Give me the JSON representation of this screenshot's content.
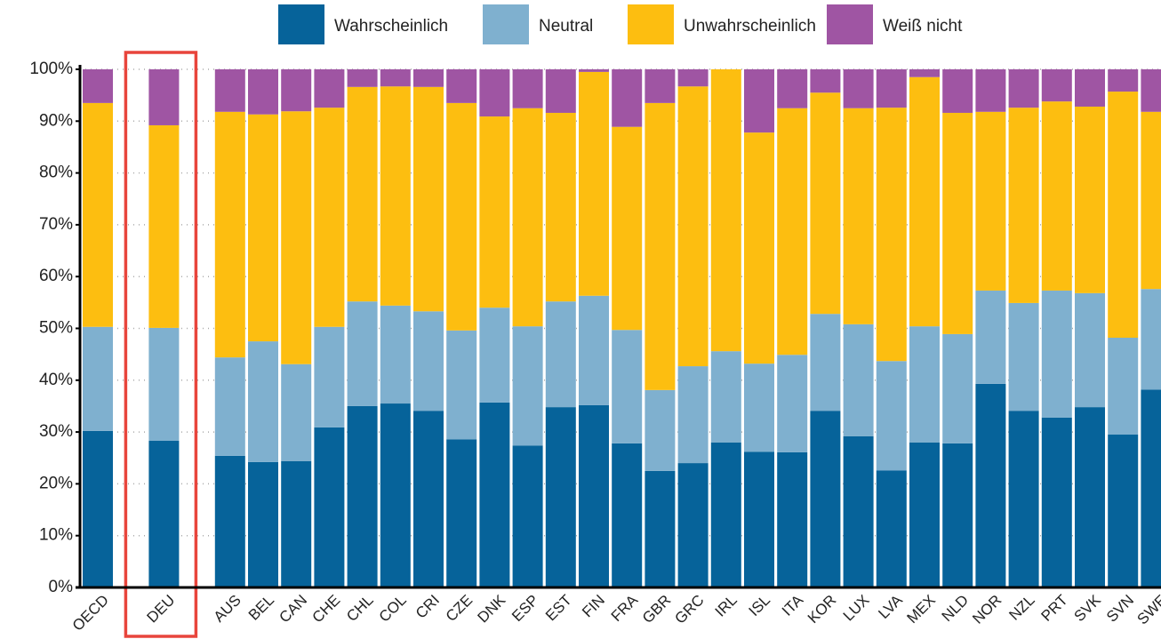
{
  "chart_data": {
    "type": "stacked_bar",
    "categories": [
      "OECD",
      null,
      "DEU",
      null,
      "AUS",
      "BEL",
      "CAN",
      "CHE",
      "CHL",
      "COL",
      "CRI",
      "CZE",
      "DNK",
      "ESP",
      "EST",
      "FIN",
      "FRA",
      "GBR",
      "GRC",
      "IRL",
      "ISL",
      "ITA",
      "KOR",
      "LUX",
      "LVA",
      "MEX",
      "NLD",
      "NOR",
      "NZL",
      "PRT",
      "SVK",
      "SVN",
      "SWE"
    ],
    "series": [
      {
        "name": "Wahrscheinlich",
        "color": "#06639a",
        "values": [
          30.2,
          null,
          28.3,
          null,
          25.4,
          24.2,
          24.4,
          30.9,
          35,
          35.5,
          34.1,
          28.6,
          35.7,
          27.4,
          34.8,
          35.2,
          27.8,
          22.5,
          24,
          28,
          26.2,
          26.1,
          34.1,
          29.2,
          22.6,
          28,
          27.8,
          39.3,
          34.1,
          32.8,
          34.8,
          29.5,
          38.2
        ]
      },
      {
        "name": "Neutral",
        "color": "#7fb0cf",
        "values": [
          20.1,
          null,
          21.8,
          null,
          19,
          23.3,
          18.7,
          19.4,
          20.2,
          18.9,
          19.2,
          21,
          18.3,
          23,
          20.4,
          21.1,
          21.9,
          15.6,
          18.7,
          17.6,
          17,
          18.8,
          18.7,
          21.6,
          21.1,
          22.4,
          21.1,
          18,
          20.8,
          24.5,
          22,
          18.7,
          19.4
        ]
      },
      {
        "name": "Unwahrscheinlich",
        "color": "#fdbe10",
        "values": [
          43.2,
          null,
          39.1,
          null,
          47.4,
          43.8,
          48.8,
          42.3,
          41.4,
          42.3,
          43.3,
          43.9,
          36.9,
          42.1,
          36.4,
          43.2,
          39.2,
          55.4,
          54,
          54.4,
          44.6,
          47.6,
          42.7,
          41.7,
          48.9,
          48.1,
          42.7,
          34.5,
          37.7,
          36.5,
          36,
          47.5,
          34.2
        ]
      },
      {
        "name": "Weiß nicht",
        "color": "#9f55a3",
        "values": [
          6.5,
          null,
          10.8,
          null,
          8.2,
          8.7,
          8.1,
          7.4,
          3.4,
          3.3,
          3.4,
          6.5,
          9.1,
          7.5,
          8.4,
          0.5,
          11.1,
          6.5,
          3.3,
          0,
          12.2,
          7.5,
          4.5,
          7.5,
          7.4,
          1.5,
          8.4,
          8.2,
          7.4,
          6.2,
          7.2,
          4.3,
          8.2
        ]
      }
    ],
    "ylim": [
      0,
      100
    ],
    "yticks": [
      {
        "value": 0,
        "label": "0%"
      },
      {
        "value": 10,
        "label": "10%"
      },
      {
        "value": 20,
        "label": "20%"
      },
      {
        "value": 30,
        "label": "30%"
      },
      {
        "value": 40,
        "label": "40%"
      },
      {
        "value": 50,
        "label": "50%"
      },
      {
        "value": 60,
        "label": "60%"
      },
      {
        "value": 70,
        "label": "70%"
      },
      {
        "value": 80,
        "label": "80%"
      },
      {
        "value": 90,
        "label": "90%"
      },
      {
        "value": 100,
        "label": "100%"
      }
    ],
    "grid": true,
    "legend": "top"
  }
}
